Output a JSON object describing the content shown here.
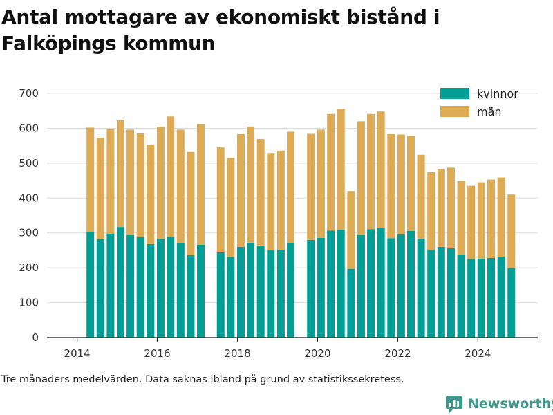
{
  "title": "Antal mottagare av ekonomiskt bistånd i Falköpings kommun",
  "footnote": "Tre månaders medelvärden. Data saknas ibland på grund av statistikssekretess.",
  "brand": {
    "name": "Newsworthy",
    "icon": "newsworthy-logo-icon",
    "color": "#3d9a8c"
  },
  "colors": {
    "kvinnor": "#009e95",
    "man": "#ddab56",
    "grid": "#dddddd",
    "axis": "#333333"
  },
  "chart_data": {
    "type": "bar",
    "stacked": true,
    "x_axis": {
      "type": "date",
      "range": [
        "2013-04-01",
        "2025-06-30"
      ],
      "ticks": [
        "2014",
        "2016",
        "2018",
        "2020",
        "2022",
        "2024"
      ]
    },
    "y_axis": {
      "range": [
        0,
        700
      ],
      "ticks": [
        0,
        100,
        200,
        300,
        400,
        500,
        600,
        700
      ]
    },
    "grid": "horizontal",
    "legend": "top-right",
    "x": [
      "2014-05",
      "2014-08",
      "2014-11",
      "2015-02",
      "2015-05",
      "2015-08",
      "2015-11",
      "2016-02",
      "2016-05",
      "2016-08",
      "2016-11",
      "2017-02",
      "2017-08",
      "2017-11",
      "2018-02",
      "2018-05",
      "2018-08",
      "2018-11",
      "2019-02",
      "2019-05",
      "2019-11",
      "2020-02",
      "2020-05",
      "2020-08",
      "2020-11",
      "2021-02",
      "2021-05",
      "2021-08",
      "2021-11",
      "2022-02",
      "2022-05",
      "2022-08",
      "2022-11",
      "2023-02",
      "2023-05",
      "2023-08",
      "2023-11",
      "2024-02",
      "2024-05",
      "2024-08",
      "2024-11"
    ],
    "series": [
      {
        "name": "kvinnor",
        "values": [
          302,
          282,
          298,
          317,
          294,
          288,
          268,
          284,
          289,
          270,
          236,
          266,
          244,
          231,
          260,
          272,
          264,
          251,
          252,
          270,
          280,
          286,
          307,
          309,
          197,
          294,
          311,
          315,
          285,
          296,
          306,
          284,
          251,
          260,
          256,
          238,
          225,
          226,
          228,
          232,
          199
        ]
      },
      {
        "name": "män",
        "values": [
          300,
          291,
          300,
          306,
          302,
          297,
          285,
          320,
          345,
          326,
          296,
          346,
          301,
          284,
          323,
          333,
          305,
          278,
          284,
          320,
          304,
          310,
          334,
          347,
          223,
          326,
          330,
          333,
          298,
          286,
          272,
          240,
          223,
          223,
          231,
          211,
          210,
          219,
          225,
          227,
          211
        ]
      }
    ]
  }
}
